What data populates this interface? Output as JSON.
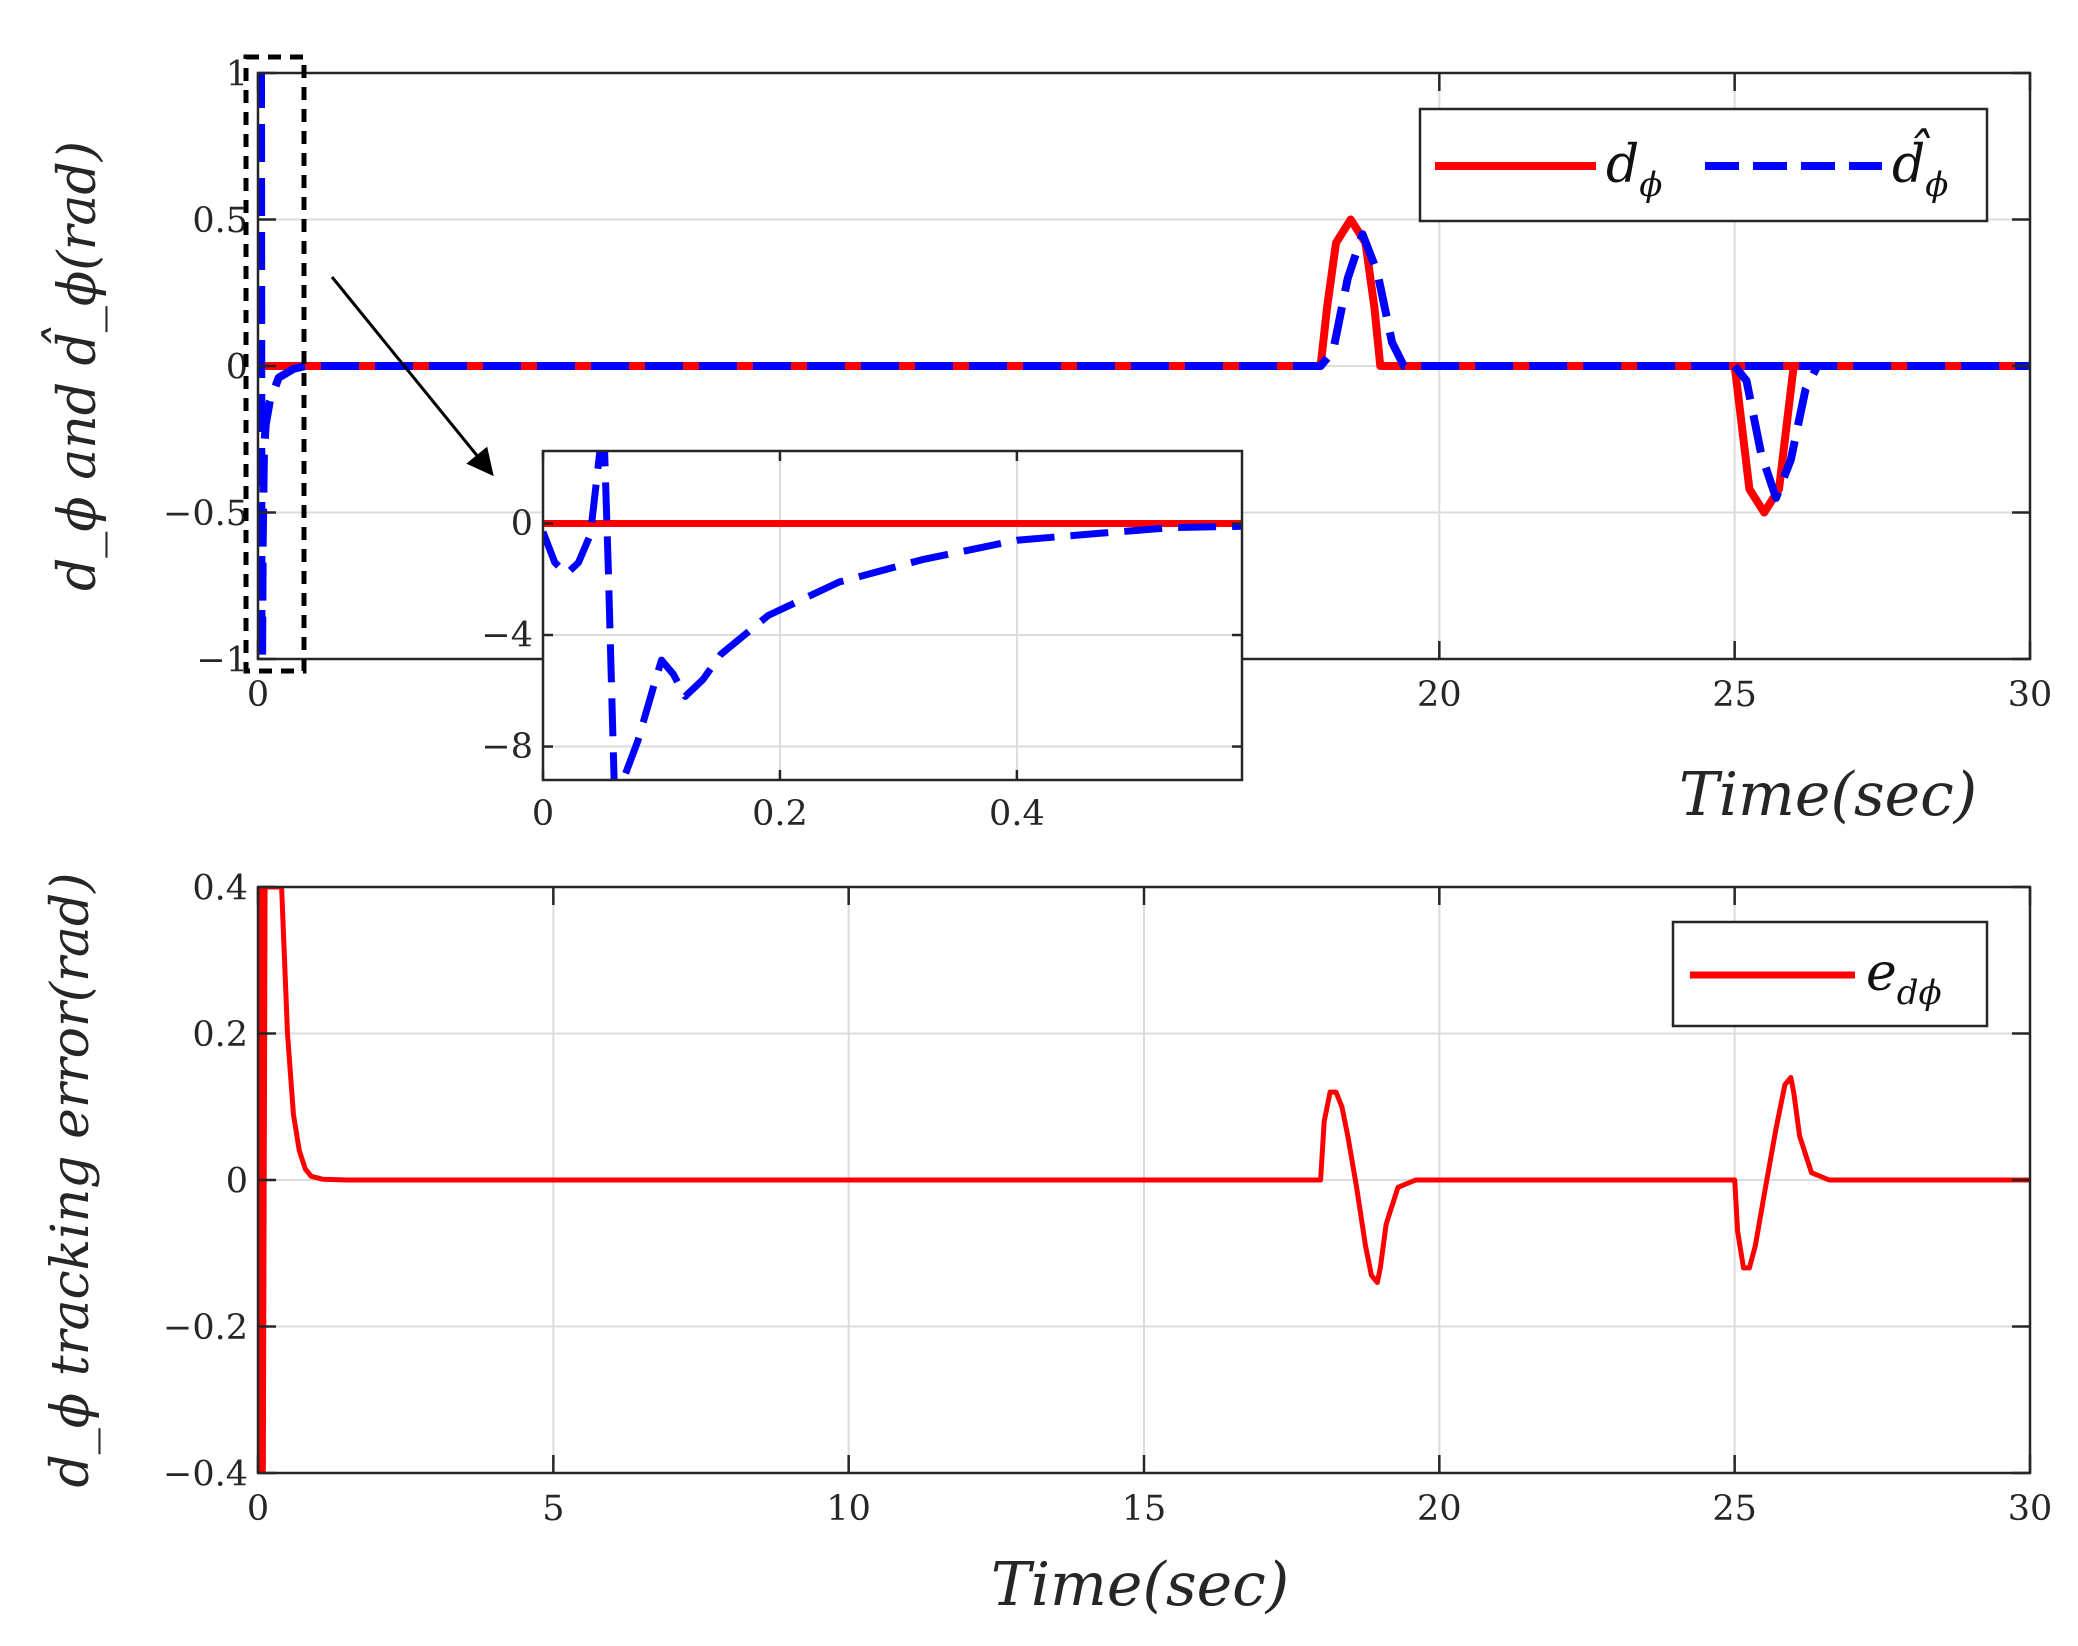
{
  "colors": {
    "reference": "#ff0000",
    "estimate": "#0000ff",
    "grid": "#dcdcdc",
    "axes": "#262626"
  },
  "chart_data": [
    {
      "type": "line",
      "panel": "top",
      "title": "",
      "xlabel": "Time(sec)",
      "ylabel": "d_ϕ and d̂_ϕ(rad)",
      "xlim": [
        0,
        30
      ],
      "ylim": [
        -1,
        1
      ],
      "xticks": [
        0,
        20,
        25,
        30
      ],
      "yticks": [
        1,
        0.5,
        0,
        -0.5,
        -1
      ],
      "xtick_labels": [
        "0",
        "20",
        "25",
        "30"
      ],
      "ytick_labels": [
        "1",
        "0.5",
        "0",
        "−0.5",
        "−1"
      ],
      "grid": true,
      "legend_position": "top-right",
      "series": [
        {
          "name": "d_ϕ",
          "style": "solid",
          "x": [
            0,
            17.99,
            18.1,
            18.25,
            18.5,
            18.75,
            18.9,
            19.0,
            30
          ],
          "y": [
            0,
            0,
            0.2,
            0.42,
            0.5,
            0.42,
            0.2,
            0,
            0
          ]
        },
        {
          "name": "d̂_ϕ",
          "style": "dashed",
          "x": [
            0,
            0.05,
            0.06,
            0.07,
            0.08,
            0.1,
            0.13,
            0.2,
            0.35,
            0.6,
            0.8,
            17.99,
            18.2,
            18.45,
            18.7,
            18.95,
            19.2,
            19.4,
            30
          ],
          "y": [
            1,
            1,
            -1,
            -1,
            -0.6,
            -0.3,
            -0.2,
            -0.12,
            -0.04,
            -0.01,
            0,
            0,
            0.05,
            0.3,
            0.45,
            0.32,
            0.08,
            0,
            0
          ]
        }
      ],
      "series_b": [
        {
          "x": [
            25.0,
            25.25,
            25.5,
            25.75,
            26.0
          ],
          "y": [
            0,
            -0.42,
            -0.5,
            -0.42,
            0
          ]
        },
        {
          "x": [
            25.0,
            25.2,
            25.45,
            25.7,
            25.95,
            26.2,
            26.4
          ],
          "y": [
            0,
            -0.05,
            -0.3,
            -0.45,
            -0.32,
            -0.08,
            0
          ]
        }
      ]
    },
    {
      "type": "line",
      "panel": "inset",
      "xlim": [
        0,
        0.59
      ],
      "ylim": [
        -9.2,
        2.6
      ],
      "xticks": [
        0,
        0.2,
        0.4
      ],
      "yticks": [
        0,
        -4,
        -8
      ],
      "xtick_labels": [
        "0",
        "0.2",
        "0.4"
      ],
      "ytick_labels": [
        "0",
        "−4",
        "−8"
      ],
      "grid": true,
      "series": [
        {
          "name": "d_ϕ",
          "style": "solid",
          "x": [
            0,
            0.59
          ],
          "y": [
            0,
            0
          ]
        },
        {
          "name": "d̂_ϕ",
          "style": "dashed",
          "x": [
            0,
            0.01,
            0.02,
            0.03,
            0.04,
            0.048,
            0.052,
            0.055,
            0.06,
            0.065,
            0.08,
            0.095,
            0.1,
            0.11,
            0.12,
            0.135,
            0.15,
            0.19,
            0.25,
            0.32,
            0.4,
            0.47,
            0.53,
            0.59
          ],
          "y": [
            -0.3,
            -1.4,
            -1.8,
            -1.4,
            -0.4,
            2.6,
            2.6,
            -1.5,
            -9.2,
            -9.5,
            -7.8,
            -5.6,
            -4.9,
            -5.4,
            -6.2,
            -5.6,
            -4.7,
            -3.3,
            -2.1,
            -1.3,
            -0.6,
            -0.35,
            -0.15,
            -0.1
          ]
        }
      ]
    },
    {
      "type": "line",
      "panel": "bottom",
      "title": "",
      "xlabel": "Time(sec)",
      "ylabel": "d_ϕ tracking error(rad)",
      "xlim": [
        0,
        30
      ],
      "ylim": [
        -0.4,
        0.4
      ],
      "xticks": [
        0,
        5,
        10,
        15,
        20,
        25,
        30
      ],
      "yticks": [
        0.4,
        0.2,
        0,
        -0.2,
        -0.4
      ],
      "xtick_labels": [
        "0",
        "5",
        "10",
        "15",
        "20",
        "25",
        "30"
      ],
      "ytick_labels": [
        "0.4",
        "0.2",
        "0",
        "−0.2",
        "−0.4"
      ],
      "grid": true,
      "legend_position": "top-right",
      "series": [
        {
          "name": "e_dϕ",
          "style": "solid",
          "x": [
            0,
            0.02,
            0.04,
            0.06,
            0.09,
            0.12,
            0.4,
            0.5,
            0.6,
            0.7,
            0.8,
            0.9,
            1.1,
            1.5,
            17.99,
            18.05,
            18.15,
            18.25,
            18.35,
            18.45,
            18.6,
            18.75,
            18.85,
            18.95,
            19.0,
            19.1,
            19.3,
            19.6,
            25.0,
            25.05,
            25.15,
            25.25,
            25.35,
            25.5,
            25.7,
            25.85,
            25.95,
            26.0,
            26.1,
            26.3,
            26.6,
            30
          ],
          "y": [
            0.4,
            -0.4,
            -0.4,
            0.4,
            -0.4,
            0.4,
            0.4,
            0.2,
            0.09,
            0.04,
            0.015,
            0.005,
            0.001,
            0,
            0,
            0.08,
            0.12,
            0.12,
            0.1,
            0.06,
            -0.01,
            -0.09,
            -0.13,
            -0.14,
            -0.12,
            -0.06,
            -0.01,
            0,
            0,
            -0.07,
            -0.12,
            -0.12,
            -0.09,
            -0.02,
            0.07,
            0.13,
            0.14,
            0.12,
            0.06,
            0.01,
            0,
            0
          ]
        }
      ]
    }
  ],
  "legend_top": {
    "entry1": "d",
    "entry1_sub": "ϕ",
    "entry2": "d̂",
    "entry2_sub": "ϕ"
  },
  "legend_bottom": {
    "entry1": "e",
    "entry1_sub": "dϕ"
  }
}
